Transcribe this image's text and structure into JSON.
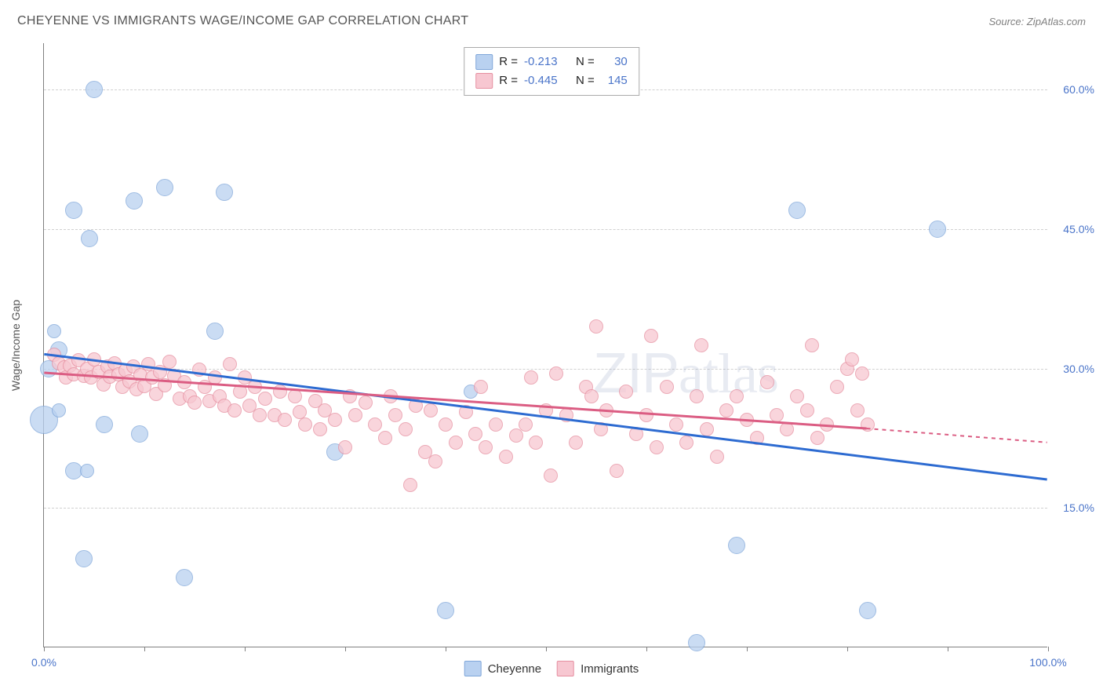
{
  "title": "CHEYENNE VS IMMIGRANTS WAGE/INCOME GAP CORRELATION CHART",
  "source": "Source: ZipAtlas.com",
  "y_axis_title": "Wage/Income Gap",
  "watermark": {
    "part1": "ZIP",
    "part2": "atlas"
  },
  "chart": {
    "type": "scatter",
    "xlim": [
      0,
      100
    ],
    "ylim": [
      0,
      65
    ],
    "y_ticks": [
      15,
      30,
      45,
      60
    ],
    "y_tick_labels": [
      "15.0%",
      "30.0%",
      "45.0%",
      "60.0%"
    ],
    "x_ticks": [
      0,
      10,
      20,
      30,
      40,
      50,
      60,
      70,
      80,
      90,
      100
    ],
    "x_tick_labels_shown": {
      "0": "0.0%",
      "100": "100.0%"
    },
    "background_color": "#ffffff",
    "grid_color": "#d0d0d0",
    "axis_color": "#808080",
    "tick_label_color": "#4a74c9",
    "series": [
      {
        "name": "Cheyenne",
        "fill": "#b9d1f0",
        "stroke": "#7fa6d9",
        "line_color": "#2d6bd1",
        "R": "-0.213",
        "N": "30",
        "regression": {
          "x1": 0,
          "y1": 31.5,
          "x2": 100,
          "y2": 18.0
        },
        "points": [
          {
            "x": 5,
            "y": 60,
            "r": 11
          },
          {
            "x": 3,
            "y": 47,
            "r": 11
          },
          {
            "x": 4.5,
            "y": 44,
            "r": 11
          },
          {
            "x": 12,
            "y": 49.5,
            "r": 11
          },
          {
            "x": 9,
            "y": 48,
            "r": 11
          },
          {
            "x": 18,
            "y": 49,
            "r": 11
          },
          {
            "x": 1,
            "y": 34,
            "r": 9
          },
          {
            "x": 1.5,
            "y": 32,
            "r": 11
          },
          {
            "x": 0.5,
            "y": 30,
            "r": 11
          },
          {
            "x": 17,
            "y": 34,
            "r": 11
          },
          {
            "x": 0,
            "y": 24.5,
            "r": 18
          },
          {
            "x": 1.5,
            "y": 25.5,
            "r": 9
          },
          {
            "x": 6,
            "y": 24,
            "r": 11
          },
          {
            "x": 9.5,
            "y": 23,
            "r": 11
          },
          {
            "x": 3,
            "y": 19,
            "r": 11
          },
          {
            "x": 4.3,
            "y": 19,
            "r": 9
          },
          {
            "x": 4,
            "y": 9.5,
            "r": 11
          },
          {
            "x": 14,
            "y": 7.5,
            "r": 11
          },
          {
            "x": 29,
            "y": 21,
            "r": 11
          },
          {
            "x": 40,
            "y": 4,
            "r": 11
          },
          {
            "x": 42.5,
            "y": 27.5,
            "r": 9
          },
          {
            "x": 65,
            "y": 0.5,
            "r": 11
          },
          {
            "x": 69,
            "y": 11,
            "r": 11
          },
          {
            "x": 75,
            "y": 47,
            "r": 11
          },
          {
            "x": 82,
            "y": 4,
            "r": 11
          },
          {
            "x": 89,
            "y": 45,
            "r": 11
          }
        ]
      },
      {
        "name": "Immigrants",
        "fill": "#f7c7d1",
        "stroke": "#e68fa0",
        "line_color": "#db5d83",
        "R": "-0.445",
        "N": "145",
        "regression": {
          "x1": 0,
          "y1": 29.5,
          "x2": 82,
          "y2": 23.5
        },
        "regression_extrap": {
          "x1": 82,
          "y1": 23.5,
          "x2": 100,
          "y2": 22
        },
        "points": [
          {
            "x": 1,
            "y": 31.5,
            "r": 9
          },
          {
            "x": 1.5,
            "y": 30.6,
            "r": 9
          },
          {
            "x": 2,
            "y": 30.1,
            "r": 9
          },
          {
            "x": 2.2,
            "y": 29.0,
            "r": 9
          },
          {
            "x": 2.6,
            "y": 30.3,
            "r": 9
          },
          {
            "x": 3,
            "y": 29.4,
            "r": 9
          },
          {
            "x": 3.4,
            "y": 30.9,
            "r": 9
          },
          {
            "x": 4,
            "y": 29.2,
            "r": 9
          },
          {
            "x": 4.3,
            "y": 30.0,
            "r": 9
          },
          {
            "x": 4.7,
            "y": 29.0,
            "r": 9
          },
          {
            "x": 5,
            "y": 31.0,
            "r": 9
          },
          {
            "x": 5.5,
            "y": 29.6,
            "r": 9
          },
          {
            "x": 5.9,
            "y": 28.3,
            "r": 9
          },
          {
            "x": 6.3,
            "y": 30.2,
            "r": 9
          },
          {
            "x": 6.6,
            "y": 29.1,
            "r": 9
          },
          {
            "x": 7,
            "y": 30.6,
            "r": 9
          },
          {
            "x": 7.4,
            "y": 29.4,
            "r": 9
          },
          {
            "x": 7.8,
            "y": 28.0,
            "r": 9
          },
          {
            "x": 8.1,
            "y": 29.8,
            "r": 9
          },
          {
            "x": 8.5,
            "y": 28.6,
            "r": 9
          },
          {
            "x": 8.9,
            "y": 30.2,
            "r": 9
          },
          {
            "x": 9.2,
            "y": 27.8,
            "r": 9
          },
          {
            "x": 9.6,
            "y": 29.3,
            "r": 9
          },
          {
            "x": 10,
            "y": 28.1,
            "r": 9
          },
          {
            "x": 10.4,
            "y": 30.5,
            "r": 9
          },
          {
            "x": 10.8,
            "y": 29.0,
            "r": 9
          },
          {
            "x": 11.2,
            "y": 27.3,
            "r": 9
          },
          {
            "x": 11.6,
            "y": 29.6,
            "r": 9
          },
          {
            "x": 12,
            "y": 28.2,
            "r": 9
          },
          {
            "x": 12.5,
            "y": 30.7,
            "r": 9
          },
          {
            "x": 13,
            "y": 29.2,
            "r": 9
          },
          {
            "x": 13.5,
            "y": 26.8,
            "r": 9
          },
          {
            "x": 14,
            "y": 28.5,
            "r": 9
          },
          {
            "x": 14.5,
            "y": 27.0,
            "r": 9
          },
          {
            "x": 15,
            "y": 26.3,
            "r": 9
          },
          {
            "x": 15.5,
            "y": 29.9,
            "r": 9
          },
          {
            "x": 16,
            "y": 28.0,
            "r": 9
          },
          {
            "x": 16.5,
            "y": 26.5,
            "r": 9
          },
          {
            "x": 17,
            "y": 29.0,
            "r": 9
          },
          {
            "x": 17.5,
            "y": 27.0,
            "r": 9
          },
          {
            "x": 18,
            "y": 26.0,
            "r": 9
          },
          {
            "x": 18.5,
            "y": 30.5,
            "r": 9
          },
          {
            "x": 19,
            "y": 25.5,
            "r": 9
          },
          {
            "x": 19.5,
            "y": 27.5,
            "r": 9
          },
          {
            "x": 20,
            "y": 29.0,
            "r": 9
          },
          {
            "x": 20.5,
            "y": 26.0,
            "r": 9
          },
          {
            "x": 21,
            "y": 28.0,
            "r": 9
          },
          {
            "x": 21.5,
            "y": 25.0,
            "r": 9
          },
          {
            "x": 22,
            "y": 26.8,
            "r": 9
          },
          {
            "x": 23,
            "y": 25.0,
            "r": 9
          },
          {
            "x": 23.5,
            "y": 27.5,
            "r": 9
          },
          {
            "x": 24,
            "y": 24.5,
            "r": 9
          },
          {
            "x": 25,
            "y": 27.0,
            "r": 9
          },
          {
            "x": 25.5,
            "y": 25.3,
            "r": 9
          },
          {
            "x": 26,
            "y": 24.0,
            "r": 9
          },
          {
            "x": 27,
            "y": 26.5,
            "r": 9
          },
          {
            "x": 27.5,
            "y": 23.5,
            "r": 9
          },
          {
            "x": 28,
            "y": 25.5,
            "r": 9
          },
          {
            "x": 29,
            "y": 24.5,
            "r": 9
          },
          {
            "x": 30,
            "y": 21.5,
            "r": 9
          },
          {
            "x": 30.5,
            "y": 27.0,
            "r": 9
          },
          {
            "x": 31,
            "y": 25.0,
            "r": 9
          },
          {
            "x": 32,
            "y": 26.3,
            "r": 9
          },
          {
            "x": 33,
            "y": 24.0,
            "r": 9
          },
          {
            "x": 34,
            "y": 22.5,
            "r": 9
          },
          {
            "x": 34.5,
            "y": 27.0,
            "r": 9
          },
          {
            "x": 35,
            "y": 25.0,
            "r": 9
          },
          {
            "x": 36,
            "y": 23.5,
            "r": 9
          },
          {
            "x": 36.5,
            "y": 17.5,
            "r": 9
          },
          {
            "x": 37,
            "y": 26.0,
            "r": 9
          },
          {
            "x": 38,
            "y": 21.0,
            "r": 9
          },
          {
            "x": 38.5,
            "y": 25.5,
            "r": 9
          },
          {
            "x": 39,
            "y": 20.0,
            "r": 9
          },
          {
            "x": 40,
            "y": 24.0,
            "r": 9
          },
          {
            "x": 41,
            "y": 22.0,
            "r": 9
          },
          {
            "x": 42,
            "y": 25.3,
            "r": 9
          },
          {
            "x": 43,
            "y": 23.0,
            "r": 9
          },
          {
            "x": 43.5,
            "y": 28.0,
            "r": 9
          },
          {
            "x": 44,
            "y": 21.5,
            "r": 9
          },
          {
            "x": 45,
            "y": 24.0,
            "r": 9
          },
          {
            "x": 46,
            "y": 20.5,
            "r": 9
          },
          {
            "x": 47,
            "y": 22.8,
            "r": 9
          },
          {
            "x": 48,
            "y": 24.0,
            "r": 9
          },
          {
            "x": 48.5,
            "y": 29.0,
            "r": 9
          },
          {
            "x": 49,
            "y": 22.0,
            "r": 9
          },
          {
            "x": 50,
            "y": 25.5,
            "r": 9
          },
          {
            "x": 50.5,
            "y": 18.5,
            "r": 9
          },
          {
            "x": 51,
            "y": 29.5,
            "r": 9
          },
          {
            "x": 52,
            "y": 25.0,
            "r": 9
          },
          {
            "x": 53,
            "y": 22.0,
            "r": 9
          },
          {
            "x": 54,
            "y": 28.0,
            "r": 9
          },
          {
            "x": 54.5,
            "y": 27.0,
            "r": 9
          },
          {
            "x": 55,
            "y": 34.5,
            "r": 9
          },
          {
            "x": 55.5,
            "y": 23.5,
            "r": 9
          },
          {
            "x": 56,
            "y": 25.5,
            "r": 9
          },
          {
            "x": 57,
            "y": 19.0,
            "r": 9
          },
          {
            "x": 58,
            "y": 27.5,
            "r": 9
          },
          {
            "x": 59,
            "y": 23.0,
            "r": 9
          },
          {
            "x": 60,
            "y": 25.0,
            "r": 9
          },
          {
            "x": 60.5,
            "y": 33.5,
            "r": 9
          },
          {
            "x": 61,
            "y": 21.5,
            "r": 9
          },
          {
            "x": 62,
            "y": 28.0,
            "r": 9
          },
          {
            "x": 63,
            "y": 24.0,
            "r": 9
          },
          {
            "x": 64,
            "y": 22.0,
            "r": 9
          },
          {
            "x": 65,
            "y": 27.0,
            "r": 9
          },
          {
            "x": 65.5,
            "y": 32.5,
            "r": 9
          },
          {
            "x": 66,
            "y": 23.5,
            "r": 9
          },
          {
            "x": 67,
            "y": 20.5,
            "r": 9
          },
          {
            "x": 68,
            "y": 25.5,
            "r": 9
          },
          {
            "x": 69,
            "y": 27.0,
            "r": 9
          },
          {
            "x": 70,
            "y": 24.5,
            "r": 9
          },
          {
            "x": 71,
            "y": 22.5,
            "r": 9
          },
          {
            "x": 72,
            "y": 28.5,
            "r": 9
          },
          {
            "x": 73,
            "y": 25.0,
            "r": 9
          },
          {
            "x": 74,
            "y": 23.5,
            "r": 9
          },
          {
            "x": 75,
            "y": 27.0,
            "r": 9
          },
          {
            "x": 76,
            "y": 25.5,
            "r": 9
          },
          {
            "x": 76.5,
            "y": 32.5,
            "r": 9
          },
          {
            "x": 77,
            "y": 22.5,
            "r": 9
          },
          {
            "x": 78,
            "y": 24.0,
            "r": 9
          },
          {
            "x": 79,
            "y": 28.0,
            "r": 9
          },
          {
            "x": 80,
            "y": 30.0,
            "r": 9
          },
          {
            "x": 80.5,
            "y": 31.0,
            "r": 9
          },
          {
            "x": 81,
            "y": 25.5,
            "r": 9
          },
          {
            "x": 81.5,
            "y": 29.5,
            "r": 9
          },
          {
            "x": 82,
            "y": 24.0,
            "r": 9
          }
        ]
      }
    ]
  },
  "top_legend_labels": {
    "R": "R =",
    "N": "N ="
  },
  "bottom_legend": [
    {
      "label": "Cheyenne",
      "fill": "#b9d1f0",
      "stroke": "#7fa6d9"
    },
    {
      "label": "Immigrants",
      "fill": "#f7c7d1",
      "stroke": "#e68fa0"
    }
  ]
}
